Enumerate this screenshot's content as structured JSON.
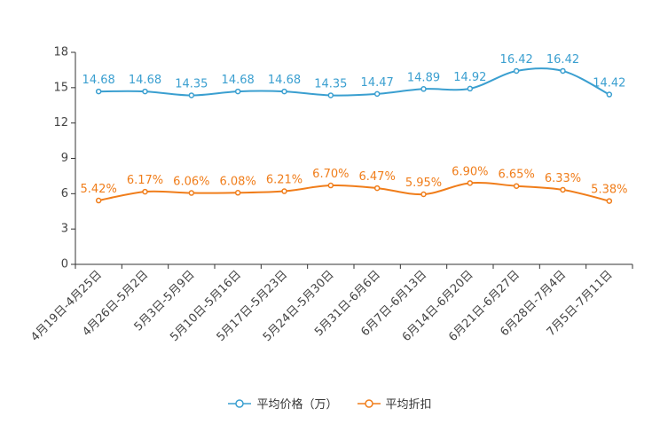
{
  "chart_data": {
    "type": "line",
    "categories": [
      "4月19日-4月25日",
      "4月26日-5月2日",
      "5月3日-5月9日",
      "5月10日-5月16日",
      "5月17日-5月23日",
      "5月24日-5月30日",
      "5月31日-6月6日",
      "6月7日-6月13日",
      "6月14日-6月20日",
      "6月21日-6月27日",
      "6月28日-7月4日",
      "7月5日-7月11日"
    ],
    "series": [
      {
        "name": "平均价格（万）",
        "color": "#3a9fd0",
        "values": [
          14.68,
          14.68,
          14.35,
          14.68,
          14.68,
          14.35,
          14.47,
          14.89,
          14.92,
          16.42,
          16.42,
          14.42
        ],
        "labels": [
          "14.68",
          "14.68",
          "14.35",
          "14.68",
          "14.68",
          "14.35",
          "14.47",
          "14.89",
          "14.92",
          "16.42",
          "16.42",
          "14.42"
        ]
      },
      {
        "name": "平均折扣",
        "color": "#f07d1a",
        "values": [
          5.42,
          6.17,
          6.06,
          6.08,
          6.21,
          6.7,
          6.47,
          5.95,
          6.9,
          6.65,
          6.33,
          5.38
        ],
        "labels": [
          "5.42%",
          "6.17%",
          "6.06%",
          "6.08%",
          "6.21%",
          "6.70%",
          "6.47%",
          "5.95%",
          "6.90%",
          "6.65%",
          "6.33%",
          "5.38%"
        ]
      }
    ],
    "yticks": [
      "0",
      "3",
      "6",
      "9",
      "12",
      "15",
      "18"
    ],
    "ylim": [
      0,
      18
    ],
    "title": "",
    "xlabel": "",
    "ylabel": "",
    "grid": false,
    "legend": "bottom-center"
  }
}
